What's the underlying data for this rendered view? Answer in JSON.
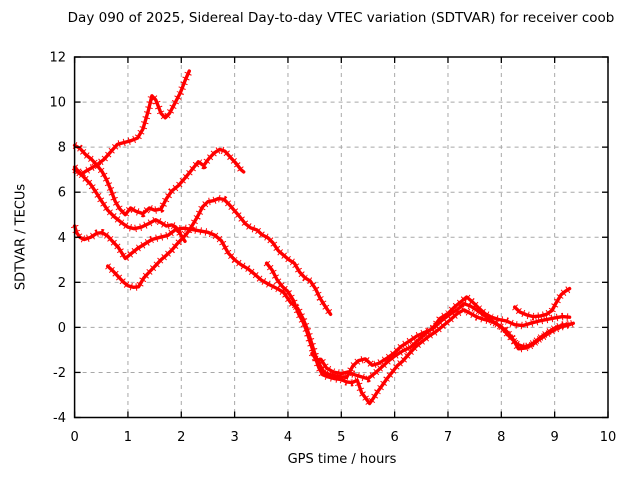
{
  "title": "Day 090 of 2025, Sidereal Day-to-day VTEC variation (SDTVAR) for receiver coob",
  "chart_data": {
    "type": "scatter",
    "title": "Day 090 of 2025, Sidereal Day-to-day VTEC variation (SDTVAR) for receiver coob",
    "xlabel": "GPS time / hours",
    "ylabel": "SDTVAR / TECUs",
    "xlim": [
      0,
      10
    ],
    "ylim": [
      -4,
      12
    ],
    "xticks": [
      0,
      1,
      2,
      3,
      4,
      5,
      6,
      7,
      8,
      9,
      10
    ],
    "yticks": [
      -4,
      -2,
      0,
      2,
      4,
      6,
      8,
      10,
      12
    ],
    "grid": true,
    "legend": "none",
    "marker": "plus",
    "trace_color": "#ff0000",
    "grid_color": "#a8a8a8",
    "border_color": "#000000",
    "series": [
      {
        "name": "trace-1",
        "points": [
          [
            0,
            7.0
          ],
          [
            0.06,
            6.9
          ],
          [
            0.12,
            6.78
          ],
          [
            0.2,
            6.92
          ],
          [
            0.3,
            7.05
          ],
          [
            0.42,
            7.22
          ],
          [
            0.55,
            7.45
          ],
          [
            0.68,
            7.8
          ],
          [
            0.8,
            8.12
          ],
          [
            0.92,
            8.2
          ],
          [
            1.05,
            8.28
          ],
          [
            1.18,
            8.4
          ],
          [
            1.28,
            8.8
          ],
          [
            1.38,
            9.6
          ],
          [
            1.45,
            10.28
          ],
          [
            1.52,
            10.1
          ],
          [
            1.62,
            9.5
          ],
          [
            1.7,
            9.3
          ],
          [
            1.78,
            9.5
          ],
          [
            1.88,
            9.95
          ],
          [
            1.98,
            10.4
          ],
          [
            2.08,
            11.0
          ],
          [
            2.15,
            11.38
          ]
        ]
      },
      {
        "name": "trace-2",
        "points": [
          [
            0,
            8.08
          ],
          [
            0.1,
            7.95
          ],
          [
            0.2,
            7.68
          ],
          [
            0.32,
            7.45
          ],
          [
            0.42,
            7.2
          ],
          [
            0.52,
            6.9
          ],
          [
            0.6,
            6.55
          ],
          [
            0.68,
            6.1
          ],
          [
            0.76,
            5.6
          ],
          [
            0.85,
            5.25
          ],
          [
            0.95,
            5.0
          ],
          [
            1.05,
            5.3
          ],
          [
            1.15,
            5.15
          ],
          [
            1.28,
            5.05
          ],
          [
            1.4,
            5.3
          ],
          [
            1.5,
            5.2
          ],
          [
            1.62,
            5.25
          ],
          [
            1.72,
            5.7
          ],
          [
            1.82,
            6.05
          ],
          [
            1.95,
            6.3
          ],
          [
            2.08,
            6.65
          ],
          [
            2.2,
            7.0
          ],
          [
            2.32,
            7.35
          ],
          [
            2.42,
            7.18
          ],
          [
            2.52,
            7.5
          ],
          [
            2.62,
            7.75
          ],
          [
            2.72,
            7.9
          ],
          [
            2.82,
            7.82
          ],
          [
            2.92,
            7.55
          ],
          [
            3.02,
            7.3
          ],
          [
            3.12,
            7.0
          ],
          [
            3.17,
            6.9
          ]
        ]
      },
      {
        "name": "trace-3",
        "points": [
          [
            0,
            7.12
          ],
          [
            0.1,
            6.85
          ],
          [
            0.2,
            6.6
          ],
          [
            0.3,
            6.35
          ],
          [
            0.4,
            6.0
          ],
          [
            0.5,
            5.62
          ],
          [
            0.62,
            5.2
          ],
          [
            0.75,
            4.9
          ],
          [
            0.88,
            4.65
          ],
          [
            1.0,
            4.45
          ],
          [
            1.12,
            4.38
          ],
          [
            1.25,
            4.45
          ],
          [
            1.4,
            4.62
          ],
          [
            1.52,
            4.78
          ],
          [
            1.62,
            4.65
          ],
          [
            1.72,
            4.5
          ],
          [
            1.82,
            4.55
          ],
          [
            1.9,
            4.45
          ],
          [
            1.98,
            4.15
          ],
          [
            2.07,
            3.82
          ]
        ]
      },
      {
        "name": "trace-4",
        "points": [
          [
            0,
            4.5
          ],
          [
            0.04,
            4.2
          ],
          [
            0.1,
            4.0
          ],
          [
            0.18,
            3.9
          ],
          [
            0.3,
            4.0
          ],
          [
            0.42,
            4.18
          ],
          [
            0.52,
            4.2
          ],
          [
            0.62,
            4.05
          ],
          [
            0.72,
            3.8
          ],
          [
            0.82,
            3.55
          ],
          [
            0.95,
            3.06
          ],
          [
            1.05,
            3.25
          ],
          [
            1.18,
            3.5
          ],
          [
            1.3,
            3.68
          ],
          [
            1.45,
            3.9
          ],
          [
            1.6,
            4.0
          ],
          [
            1.75,
            4.08
          ],
          [
            1.9,
            4.35
          ],
          [
            2.05,
            4.4
          ],
          [
            2.2,
            4.35
          ],
          [
            2.35,
            4.28
          ],
          [
            2.5,
            4.22
          ],
          [
            2.62,
            4.1
          ],
          [
            2.75,
            3.85
          ],
          [
            2.88,
            3.3
          ],
          [
            3.0,
            3.0
          ],
          [
            3.12,
            2.78
          ],
          [
            3.25,
            2.6
          ],
          [
            3.38,
            2.35
          ],
          [
            3.5,
            2.1
          ],
          [
            3.65,
            1.9
          ],
          [
            3.8,
            1.72
          ],
          [
            3.92,
            1.55
          ],
          [
            4.05,
            1.1
          ],
          [
            4.18,
            0.85
          ],
          [
            4.28,
            0.4
          ],
          [
            4.35,
            0.0
          ],
          [
            4.45,
            -0.75
          ],
          [
            4.52,
            -1.3
          ],
          [
            4.6,
            -1.68
          ],
          [
            4.68,
            -2.0
          ],
          [
            4.8,
            -2.1
          ],
          [
            4.95,
            -2.18
          ],
          [
            5.1,
            -2.22
          ],
          [
            5.22,
            -1.7
          ],
          [
            5.32,
            -1.48
          ],
          [
            5.45,
            -1.4
          ],
          [
            5.58,
            -1.68
          ],
          [
            5.7,
            -1.6
          ],
          [
            5.85,
            -1.38
          ],
          [
            6.0,
            -1.12
          ],
          [
            6.12,
            -0.85
          ],
          [
            6.28,
            -0.6
          ],
          [
            6.42,
            -0.38
          ],
          [
            6.58,
            -0.2
          ],
          [
            6.72,
            -0.05
          ],
          [
            6.88,
            0.3
          ],
          [
            7.02,
            0.55
          ],
          [
            7.18,
            0.8
          ],
          [
            7.3,
            1.05
          ],
          [
            7.42,
            0.95
          ],
          [
            7.55,
            0.75
          ],
          [
            7.7,
            0.5
          ],
          [
            7.85,
            0.25
          ],
          [
            8.0,
            0.0
          ],
          [
            8.15,
            -0.4
          ],
          [
            8.3,
            -0.75
          ],
          [
            8.45,
            -0.88
          ],
          [
            8.6,
            -0.7
          ],
          [
            8.75,
            -0.42
          ],
          [
            8.9,
            -0.18
          ],
          [
            9.02,
            0.0
          ],
          [
            9.15,
            0.1
          ],
          [
            9.3,
            0.15
          ]
        ]
      },
      {
        "name": "trace-5",
        "points": [
          [
            0.62,
            2.72
          ],
          [
            0.72,
            2.5
          ],
          [
            0.82,
            2.25
          ],
          [
            0.92,
            2.0
          ],
          [
            1.0,
            1.85
          ],
          [
            1.1,
            1.78
          ],
          [
            1.2,
            1.8
          ],
          [
            1.3,
            2.2
          ],
          [
            1.42,
            2.5
          ],
          [
            1.52,
            2.75
          ],
          [
            1.62,
            3.0
          ],
          [
            1.72,
            3.2
          ],
          [
            1.82,
            3.42
          ],
          [
            1.92,
            3.7
          ],
          [
            2.02,
            3.95
          ],
          [
            2.1,
            4.15
          ],
          [
            2.2,
            4.5
          ],
          [
            2.3,
            4.9
          ],
          [
            2.4,
            5.35
          ],
          [
            2.5,
            5.58
          ],
          [
            2.6,
            5.62
          ],
          [
            2.7,
            5.72
          ],
          [
            2.8,
            5.68
          ],
          [
            2.9,
            5.45
          ],
          [
            3.0,
            5.18
          ],
          [
            3.1,
            4.9
          ],
          [
            3.2,
            4.6
          ],
          [
            3.3,
            4.42
          ],
          [
            3.42,
            4.32
          ],
          [
            3.52,
            4.1
          ],
          [
            3.62,
            3.98
          ],
          [
            3.72,
            3.75
          ],
          [
            3.82,
            3.4
          ],
          [
            3.92,
            3.2
          ],
          [
            4.02,
            3.0
          ],
          [
            4.12,
            2.85
          ],
          [
            4.22,
            2.45
          ],
          [
            4.32,
            2.2
          ],
          [
            4.42,
            2.05
          ],
          [
            4.52,
            1.7
          ],
          [
            4.6,
            1.3
          ],
          [
            4.68,
            1.0
          ],
          [
            4.75,
            0.75
          ],
          [
            4.8,
            0.58
          ]
        ]
      },
      {
        "name": "trace-6",
        "points": [
          [
            3.6,
            2.85
          ],
          [
            3.7,
            2.55
          ],
          [
            3.8,
            2.1
          ],
          [
            3.9,
            1.8
          ],
          [
            4.0,
            1.58
          ],
          [
            4.1,
            1.2
          ],
          [
            4.2,
            0.6
          ],
          [
            4.28,
            0.25
          ],
          [
            4.35,
            -0.15
          ],
          [
            4.42,
            -0.7
          ],
          [
            4.5,
            -1.25
          ],
          [
            4.58,
            -1.8
          ],
          [
            4.65,
            -2.1
          ],
          [
            4.75,
            -2.2
          ],
          [
            4.88,
            -2.28
          ],
          [
            5.0,
            -2.32
          ],
          [
            5.1,
            -2.42
          ],
          [
            5.2,
            -2.45
          ],
          [
            5.3,
            -2.35
          ],
          [
            5.38,
            -2.9
          ],
          [
            5.46,
            -3.15
          ],
          [
            5.53,
            -3.38
          ],
          [
            5.6,
            -3.15
          ],
          [
            5.68,
            -2.85
          ],
          [
            5.76,
            -2.6
          ],
          [
            5.85,
            -2.3
          ],
          [
            5.95,
            -2.0
          ],
          [
            6.05,
            -1.7
          ],
          [
            6.15,
            -1.5
          ],
          [
            6.28,
            -1.15
          ],
          [
            6.4,
            -0.85
          ],
          [
            6.52,
            -0.62
          ],
          [
            6.65,
            -0.38
          ],
          [
            6.78,
            -0.18
          ],
          [
            6.9,
            0.05
          ],
          [
            7.05,
            0.35
          ],
          [
            7.18,
            0.62
          ],
          [
            7.3,
            0.78
          ],
          [
            7.42,
            0.62
          ],
          [
            7.55,
            0.45
          ],
          [
            7.68,
            0.35
          ],
          [
            7.8,
            0.28
          ],
          [
            7.95,
            0.1
          ],
          [
            8.08,
            -0.12
          ],
          [
            8.2,
            -0.45
          ],
          [
            8.32,
            -0.95
          ],
          [
            8.45,
            -0.92
          ],
          [
            8.58,
            -0.78
          ],
          [
            8.7,
            -0.55
          ],
          [
            8.85,
            -0.32
          ],
          [
            9.0,
            -0.1
          ],
          [
            9.12,
            0.02
          ],
          [
            9.25,
            0.1
          ],
          [
            9.35,
            0.18
          ]
        ]
      },
      {
        "name": "trace-7",
        "points": [
          [
            4.45,
            -1.15
          ],
          [
            4.55,
            -1.5
          ],
          [
            4.62,
            -1.42
          ],
          [
            4.72,
            -1.8
          ],
          [
            4.85,
            -1.98
          ],
          [
            5.0,
            -2.05
          ],
          [
            5.12,
            -1.98
          ],
          [
            5.25,
            -2.1
          ],
          [
            5.38,
            -2.2
          ],
          [
            5.5,
            -2.28
          ],
          [
            5.62,
            -2.05
          ],
          [
            5.75,
            -1.78
          ],
          [
            5.88,
            -1.5
          ],
          [
            6.0,
            -1.28
          ],
          [
            6.15,
            -1.05
          ],
          [
            6.3,
            -0.88
          ],
          [
            6.45,
            -0.55
          ],
          [
            6.58,
            -0.28
          ],
          [
            6.72,
            -0.02
          ],
          [
            6.85,
            0.4
          ],
          [
            7.0,
            0.62
          ],
          [
            7.12,
            0.9
          ],
          [
            7.25,
            1.15
          ],
          [
            7.35,
            1.35
          ],
          [
            7.45,
            1.15
          ],
          [
            7.58,
            0.85
          ],
          [
            7.7,
            0.6
          ],
          [
            7.82,
            0.45
          ],
          [
            7.95,
            0.35
          ],
          [
            8.1,
            0.28
          ],
          [
            8.25,
            0.12
          ],
          [
            8.4,
            0.08
          ],
          [
            8.55,
            0.18
          ],
          [
            8.7,
            0.28
          ],
          [
            8.85,
            0.35
          ],
          [
            9.0,
            0.42
          ],
          [
            9.15,
            0.48
          ],
          [
            9.28,
            0.45
          ]
        ]
      },
      {
        "name": "trace-8",
        "points": [
          [
            8.25,
            0.9
          ],
          [
            8.35,
            0.68
          ],
          [
            8.48,
            0.55
          ],
          [
            8.6,
            0.48
          ],
          [
            8.72,
            0.5
          ],
          [
            8.85,
            0.58
          ],
          [
            8.95,
            0.75
          ],
          [
            9.03,
            1.1
          ],
          [
            9.12,
            1.45
          ],
          [
            9.2,
            1.6
          ],
          [
            9.28,
            1.72
          ]
        ]
      }
    ]
  }
}
